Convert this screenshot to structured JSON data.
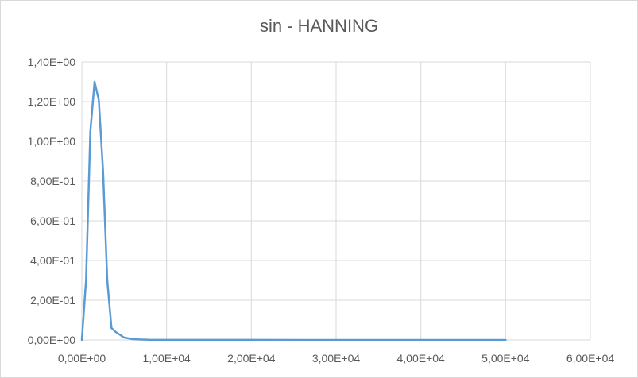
{
  "chart_data": {
    "type": "line",
    "title": "sin - HANNING",
    "xlabel": "",
    "ylabel": "",
    "xlim": [
      0,
      60000
    ],
    "ylim": [
      0,
      1.4
    ],
    "x_ticks": [
      0,
      10000,
      20000,
      30000,
      40000,
      50000,
      60000
    ],
    "x_tick_labels": [
      "0,00E+00",
      "1,00E+04",
      "2,00E+04",
      "3,00E+04",
      "4,00E+04",
      "5,00E+04",
      "6,00E+04"
    ],
    "y_ticks": [
      0,
      0.2,
      0.4,
      0.6,
      0.8,
      1.0,
      1.2,
      1.4
    ],
    "y_tick_labels": [
      "0,00E+00",
      "2,00E-01",
      "4,00E-01",
      "6,00E-01",
      "8,00E-01",
      "1,00E+00",
      "1,20E+00",
      "1,40E+00"
    ],
    "grid": "vertical and horizontal major gridlines",
    "legend": "none",
    "series": [
      {
        "color": "#5b9bd5",
        "x": [
          0,
          500,
          1000,
          1500,
          2000,
          2500,
          3000,
          3500,
          4000,
          5000,
          6000,
          7000,
          8000,
          10000,
          20000,
          30000,
          40000,
          50000
        ],
        "y": [
          0.0,
          0.3,
          1.05,
          1.3,
          1.21,
          0.85,
          0.3,
          0.06,
          0.04,
          0.012,
          0.004,
          0.002,
          0.001,
          0.0005,
          0.0002,
          0.0001,
          0.0001,
          0.0001
        ]
      }
    ]
  }
}
